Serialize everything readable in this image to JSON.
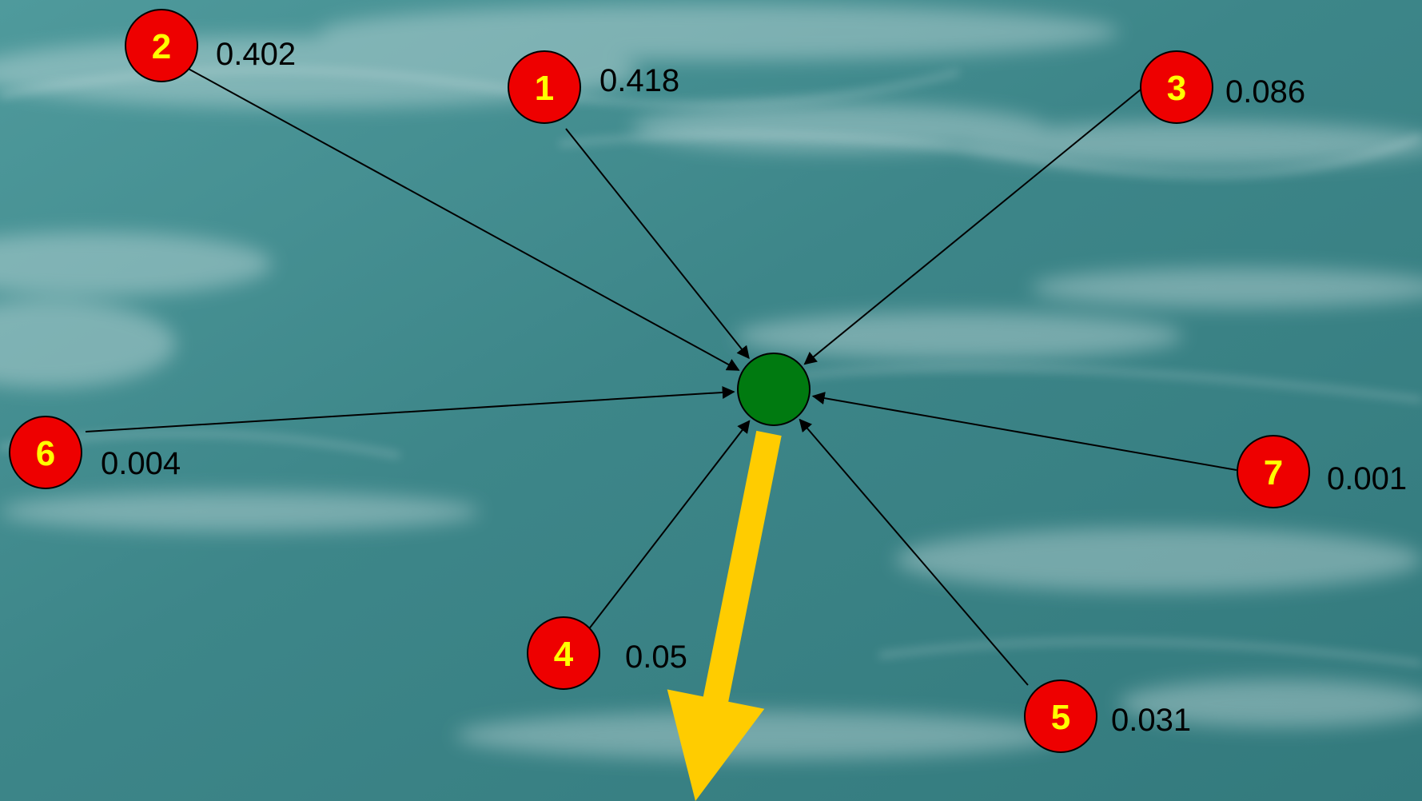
{
  "diagram": {
    "colors": {
      "node_fill": "#ee0000",
      "node_label": "#ffff00",
      "center_fill": "#007a10",
      "edge": "#000000",
      "output_arrow": "#ffcc00",
      "background": "#3f8a8d"
    },
    "center": {
      "name": "center-node"
    },
    "nodes": [
      {
        "label": "1",
        "weight": "0.418"
      },
      {
        "label": "2",
        "weight": "0.402"
      },
      {
        "label": "3",
        "weight": "0.086"
      },
      {
        "label": "4",
        "weight": "0.05"
      },
      {
        "label": "5",
        "weight": "0.031"
      },
      {
        "label": "6",
        "weight": "0.004"
      },
      {
        "label": "7",
        "weight": "0.001"
      }
    ],
    "output_arrow": {
      "name": "output-arrow"
    }
  }
}
